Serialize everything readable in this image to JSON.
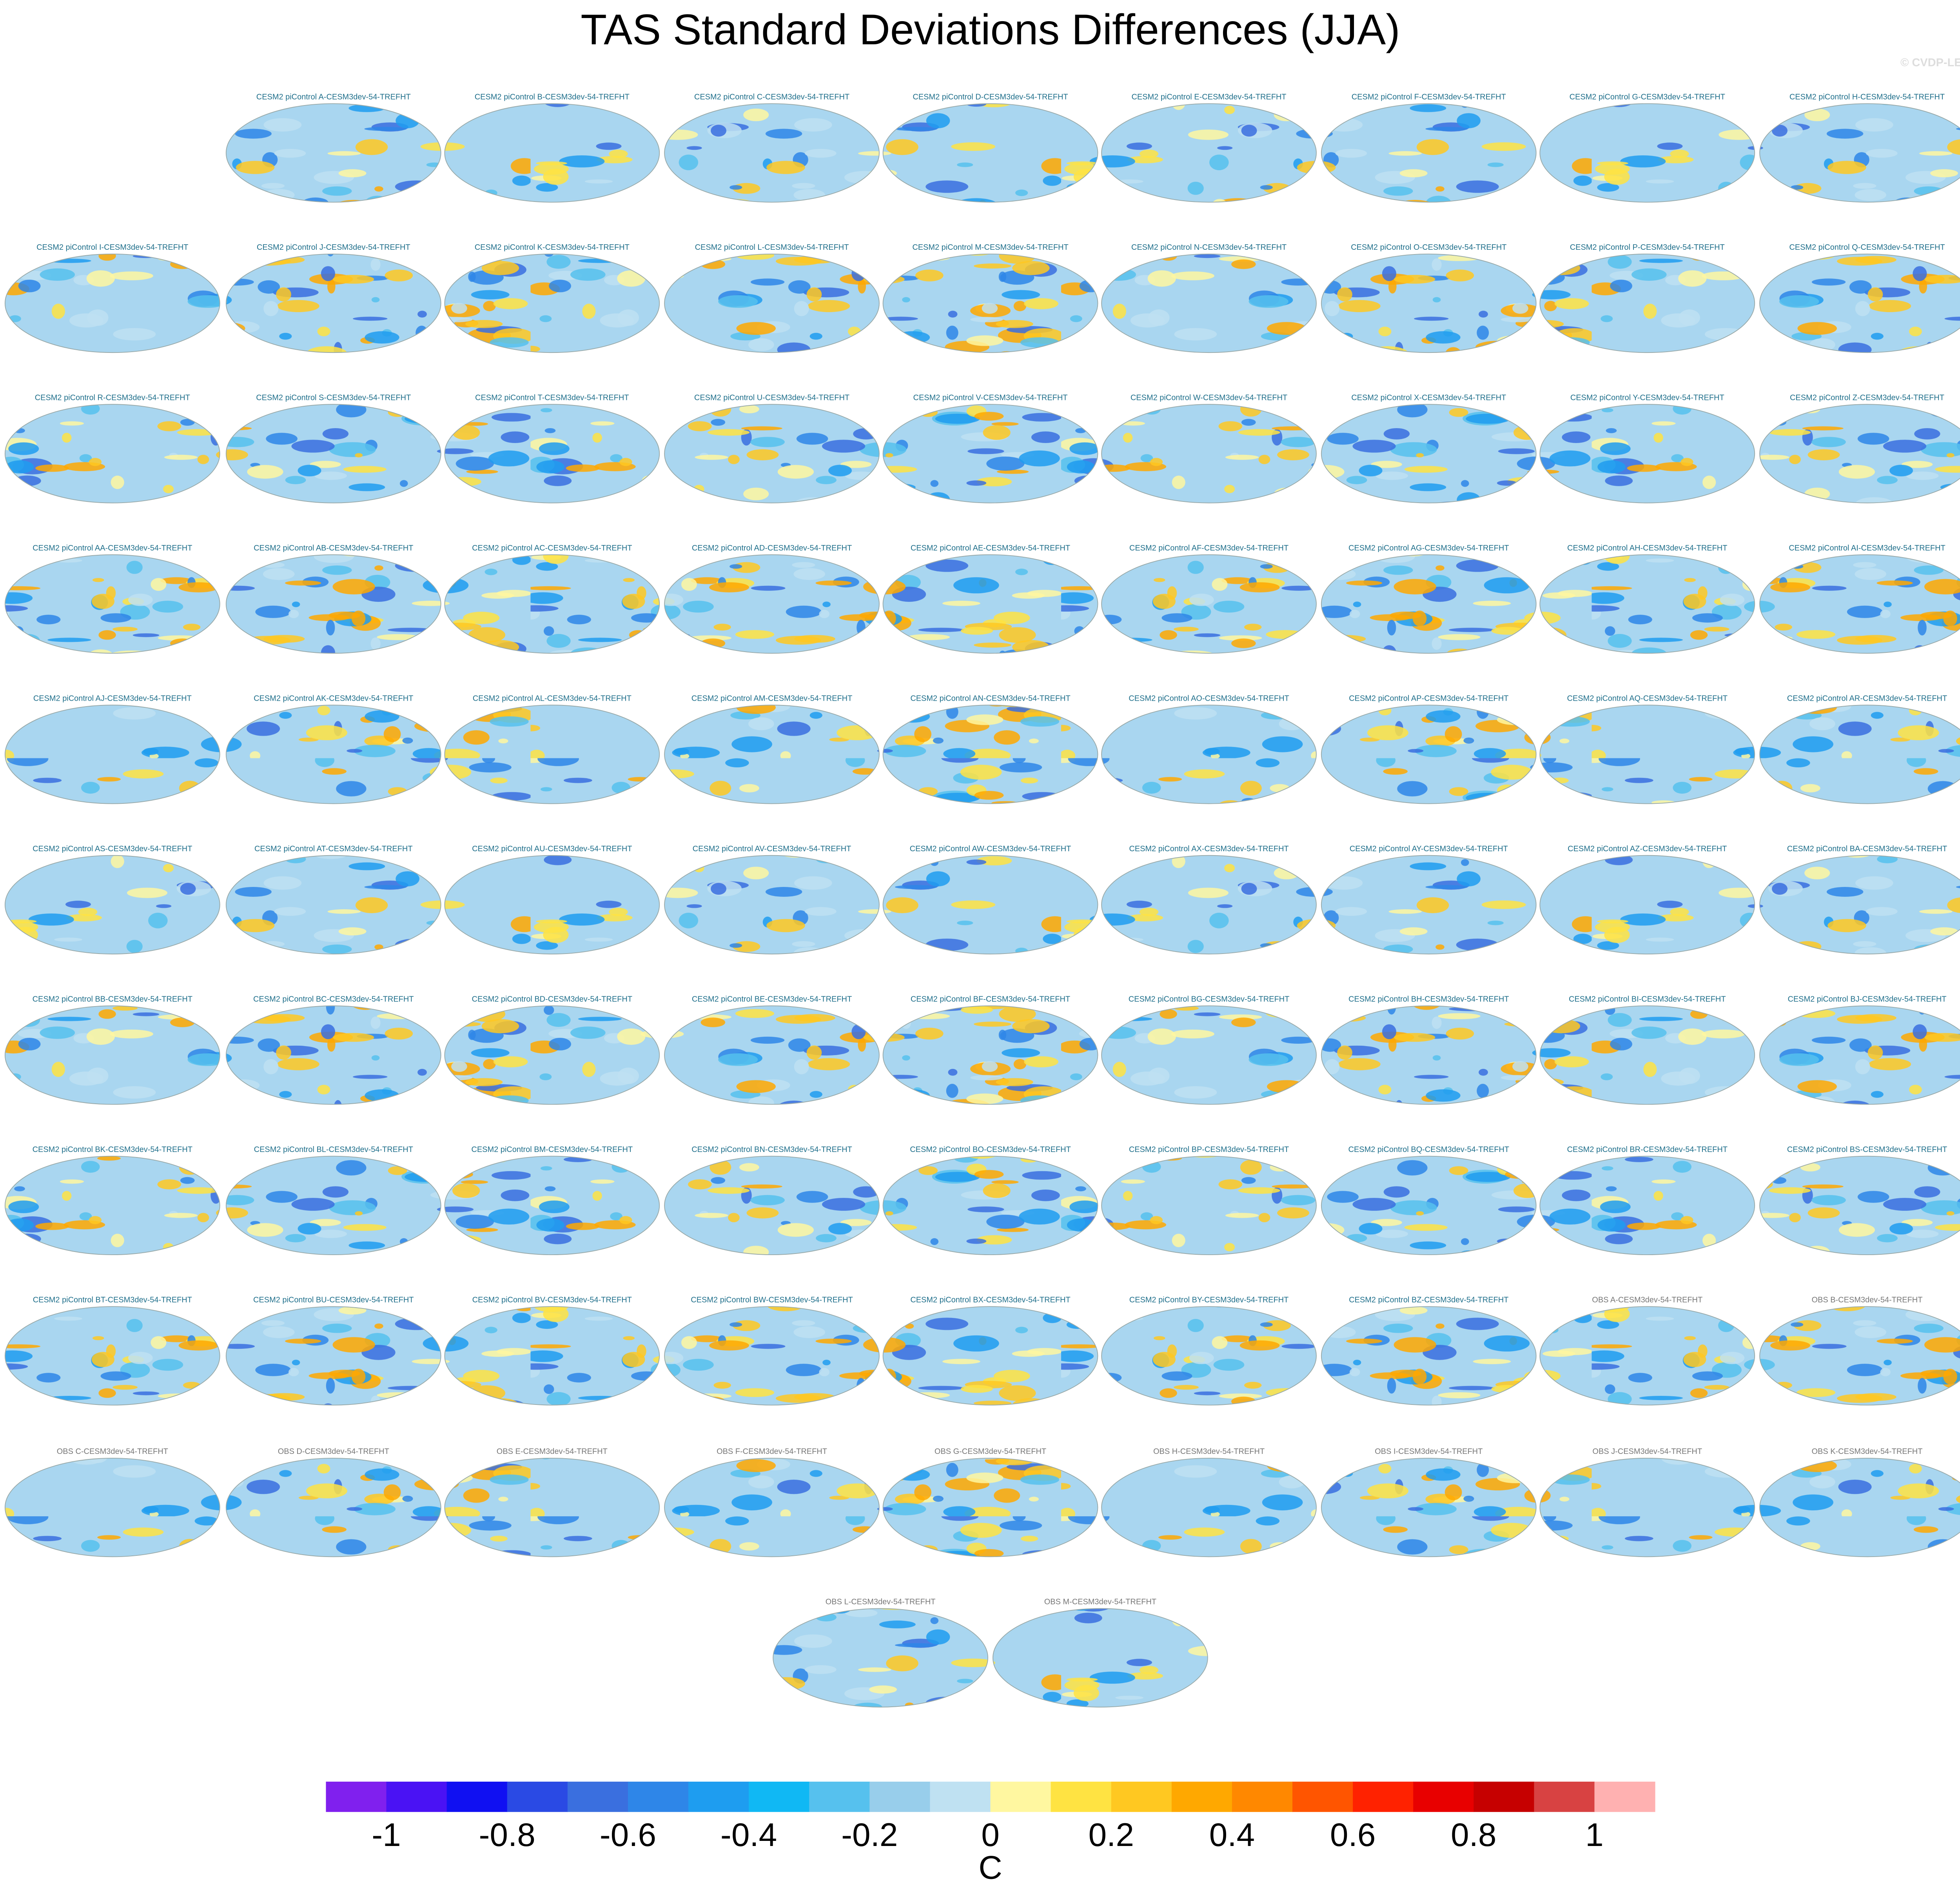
{
  "title": "TAS Standard Deviations Differences (JJA)",
  "copyright": "© CVDP-LE",
  "panels": [
    {
      "title": "CESM2 piControl A-CESM3dev-54-TREFHT"
    },
    {
      "title": "CESM2 piControl B-CESM3dev-54-TREFHT"
    },
    {
      "title": "CESM2 piControl C-CESM3dev-54-TREFHT"
    },
    {
      "title": "CESM2 piControl D-CESM3dev-54-TREFHT"
    },
    {
      "title": "CESM2 piControl E-CESM3dev-54-TREFHT"
    },
    {
      "title": "CESM2 piControl F-CESM3dev-54-TREFHT"
    },
    {
      "title": "CESM2 piControl G-CESM3dev-54-TREFHT"
    },
    {
      "title": "CESM2 piControl H-CESM3dev-54-TREFHT"
    },
    {
      "title": "CESM2 piControl I-CESM3dev-54-TREFHT"
    },
    {
      "title": "CESM2 piControl J-CESM3dev-54-TREFHT"
    },
    {
      "title": "CESM2 piControl K-CESM3dev-54-TREFHT"
    },
    {
      "title": "CESM2 piControl L-CESM3dev-54-TREFHT"
    },
    {
      "title": "CESM2 piControl M-CESM3dev-54-TREFHT"
    },
    {
      "title": "CESM2 piControl N-CESM3dev-54-TREFHT"
    },
    {
      "title": "CESM2 piControl O-CESM3dev-54-TREFHT"
    },
    {
      "title": "CESM2 piControl P-CESM3dev-54-TREFHT"
    },
    {
      "title": "CESM2 piControl Q-CESM3dev-54-TREFHT"
    },
    {
      "title": "CESM2 piControl R-CESM3dev-54-TREFHT"
    },
    {
      "title": "CESM2 piControl S-CESM3dev-54-TREFHT"
    },
    {
      "title": "CESM2 piControl T-CESM3dev-54-TREFHT"
    },
    {
      "title": "CESM2 piControl U-CESM3dev-54-TREFHT"
    },
    {
      "title": "CESM2 piControl V-CESM3dev-54-TREFHT"
    },
    {
      "title": "CESM2 piControl W-CESM3dev-54-TREFHT"
    },
    {
      "title": "CESM2 piControl X-CESM3dev-54-TREFHT"
    },
    {
      "title": "CESM2 piControl Y-CESM3dev-54-TREFHT"
    },
    {
      "title": "CESM2 piControl Z-CESM3dev-54-TREFHT"
    },
    {
      "title": "CESM2 piControl AA-CESM3dev-54-TREFHT"
    },
    {
      "title": "CESM2 piControl AB-CESM3dev-54-TREFHT"
    },
    {
      "title": "CESM2 piControl AC-CESM3dev-54-TREFHT"
    },
    {
      "title": "CESM2 piControl AD-CESM3dev-54-TREFHT"
    },
    {
      "title": "CESM2 piControl AE-CESM3dev-54-TREFHT"
    },
    {
      "title": "CESM2 piControl AF-CESM3dev-54-TREFHT"
    },
    {
      "title": "CESM2 piControl AG-CESM3dev-54-TREFHT"
    },
    {
      "title": "CESM2 piControl AH-CESM3dev-54-TREFHT"
    },
    {
      "title": "CESM2 piControl AI-CESM3dev-54-TREFHT"
    },
    {
      "title": "CESM2 piControl AJ-CESM3dev-54-TREFHT"
    },
    {
      "title": "CESM2 piControl AK-CESM3dev-54-TREFHT"
    },
    {
      "title": "CESM2 piControl AL-CESM3dev-54-TREFHT"
    },
    {
      "title": "CESM2 piControl AM-CESM3dev-54-TREFHT"
    },
    {
      "title": "CESM2 piControl AN-CESM3dev-54-TREFHT"
    },
    {
      "title": "CESM2 piControl AO-CESM3dev-54-TREFHT"
    },
    {
      "title": "CESM2 piControl AP-CESM3dev-54-TREFHT"
    },
    {
      "title": "CESM2 piControl AQ-CESM3dev-54-TREFHT"
    },
    {
      "title": "CESM2 piControl AR-CESM3dev-54-TREFHT"
    },
    {
      "title": "CESM2 piControl AS-CESM3dev-54-TREFHT"
    },
    {
      "title": "CESM2 piControl AT-CESM3dev-54-TREFHT"
    },
    {
      "title": "CESM2 piControl AU-CESM3dev-54-TREFHT"
    },
    {
      "title": "CESM2 piControl AV-CESM3dev-54-TREFHT"
    },
    {
      "title": "CESM2 piControl AW-CESM3dev-54-TREFHT"
    },
    {
      "title": "CESM2 piControl AX-CESM3dev-54-TREFHT"
    },
    {
      "title": "CESM2 piControl AY-CESM3dev-54-TREFHT"
    },
    {
      "title": "CESM2 piControl AZ-CESM3dev-54-TREFHT"
    },
    {
      "title": "CESM2 piControl BA-CESM3dev-54-TREFHT"
    },
    {
      "title": "CESM2 piControl BB-CESM3dev-54-TREFHT"
    },
    {
      "title": "CESM2 piControl BC-CESM3dev-54-TREFHT"
    },
    {
      "title": "CESM2 piControl BD-CESM3dev-54-TREFHT"
    },
    {
      "title": "CESM2 piControl BE-CESM3dev-54-TREFHT"
    },
    {
      "title": "CESM2 piControl BF-CESM3dev-54-TREFHT"
    },
    {
      "title": "CESM2 piControl BG-CESM3dev-54-TREFHT"
    },
    {
      "title": "CESM2 piControl BH-CESM3dev-54-TREFHT"
    },
    {
      "title": "CESM2 piControl BI-CESM3dev-54-TREFHT"
    },
    {
      "title": "CESM2 piControl BJ-CESM3dev-54-TREFHT"
    },
    {
      "title": "CESM2 piControl BK-CESM3dev-54-TREFHT"
    },
    {
      "title": "CESM2 piControl BL-CESM3dev-54-TREFHT"
    },
    {
      "title": "CESM2 piControl BM-CESM3dev-54-TREFHT"
    },
    {
      "title": "CESM2 piControl BN-CESM3dev-54-TREFHT"
    },
    {
      "title": "CESM2 piControl BO-CESM3dev-54-TREFHT"
    },
    {
      "title": "CESM2 piControl BP-CESM3dev-54-TREFHT"
    },
    {
      "title": "CESM2 piControl BQ-CESM3dev-54-TREFHT"
    },
    {
      "title": "CESM2 piControl BR-CESM3dev-54-TREFHT"
    },
    {
      "title": "CESM2 piControl BS-CESM3dev-54-TREFHT"
    },
    {
      "title": "CESM2 piControl BT-CESM3dev-54-TREFHT"
    },
    {
      "title": "CESM2 piControl BU-CESM3dev-54-TREFHT"
    },
    {
      "title": "CESM2 piControl BV-CESM3dev-54-TREFHT"
    },
    {
      "title": "CESM2 piControl BW-CESM3dev-54-TREFHT"
    },
    {
      "title": "CESM2 piControl BX-CESM3dev-54-TREFHT"
    },
    {
      "title": "CESM2 piControl BY-CESM3dev-54-TREFHT"
    },
    {
      "title": "CESM2 piControl BZ-CESM3dev-54-TREFHT"
    },
    {
      "title": "OBS A-CESM3dev-54-TREFHT"
    },
    {
      "title": "OBS B-CESM3dev-54-TREFHT"
    },
    {
      "title": "OBS C-CESM3dev-54-TREFHT"
    },
    {
      "title": "OBS D-CESM3dev-54-TREFHT"
    },
    {
      "title": "OBS E-CESM3dev-54-TREFHT"
    },
    {
      "title": "OBS F-CESM3dev-54-TREFHT"
    },
    {
      "title": "OBS G-CESM3dev-54-TREFHT"
    },
    {
      "title": "OBS H-CESM3dev-54-TREFHT"
    },
    {
      "title": "OBS I-CESM3dev-54-TREFHT"
    },
    {
      "title": "OBS J-CESM3dev-54-TREFHT"
    },
    {
      "title": "OBS K-CESM3dev-54-TREFHT"
    },
    {
      "title": "OBS L-CESM3dev-54-TREFHT"
    },
    {
      "title": "OBS M-CESM3dev-54-TREFHT"
    }
  ],
  "colorbar": {
    "unit": "C",
    "colors": [
      "#8020ee",
      "#4a12f4",
      "#1010f2",
      "#2a4ae4",
      "#3a6fdf",
      "#2e86e8",
      "#1e9df0",
      "#10b8f4",
      "#56c1ee",
      "#98ceeb",
      "#bfe1f2",
      "#fff7a0",
      "#ffe342",
      "#ffc821",
      "#ffa800",
      "#ff8800",
      "#ff5500",
      "#ff2200",
      "#e80000",
      "#c60000",
      "#d84242",
      "#ffb1b1"
    ],
    "levels": [
      -1,
      -0.9,
      -0.8,
      -0.7,
      -0.6,
      -0.5,
      -0.4,
      -0.3,
      -0.2,
      -0.1,
      0,
      0.1,
      0.2,
      0.3,
      0.4,
      0.5,
      0.6,
      0.7,
      0.8,
      0.9,
      1
    ],
    "ticks": [
      -1,
      -0.8,
      -0.6,
      -0.4,
      -0.2,
      0,
      0.2,
      0.4,
      0.6,
      0.8,
      1
    ]
  }
}
